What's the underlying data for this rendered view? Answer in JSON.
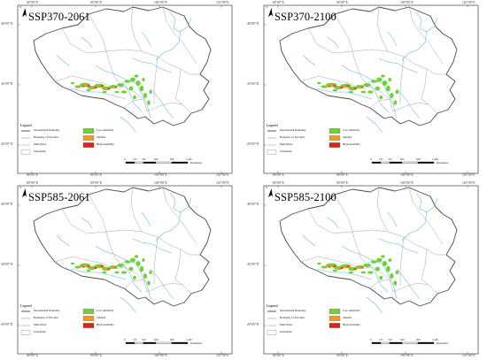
{
  "grid": {
    "lon": [
      "80°0'0\"E",
      "90°0'0\"E",
      "100°0'0\"E",
      "110°0'0\"E"
    ],
    "lat": [
      "40°0'0\"N",
      "30°0'0\"N",
      "20°0'0\"N"
    ]
  },
  "north": "N",
  "legend": {
    "title": "Legend",
    "items": [
      {
        "label": "International Boundary",
        "kind": "line",
        "color": "#555555"
      },
      {
        "label": "Boundary of Province",
        "kind": "line",
        "color": "#9a9a9a"
      },
      {
        "label": "Main River",
        "kind": "line",
        "color": "#5fb6e6"
      },
      {
        "label": "Unsuitable",
        "kind": "box",
        "color": "#ffffff"
      },
      {
        "label": "Low suitability",
        "kind": "box",
        "color": "#6fd13a"
      },
      {
        "label": "Suitable",
        "kind": "box",
        "color": "#f29a28"
      },
      {
        "label": "High suitability",
        "kind": "box",
        "color": "#d9241c"
      }
    ]
  },
  "scale": {
    "ticks": [
      "0",
      "155",
      "310",
      "620",
      "930",
      "1,240"
    ],
    "unit": "Kilometers"
  },
  "colors": {
    "low": "#6fd13a",
    "suitable": "#f29a28",
    "high": "#d9241c",
    "river": "#5fb6e6",
    "province": "#9a9a9a",
    "intl": "#4a4a4a"
  },
  "panels": [
    {
      "title": "SSP370-2061"
    },
    {
      "title": "SSP370-2100"
    },
    {
      "title": "SSP585-2061"
    },
    {
      "title": "SSP585-2100"
    }
  ]
}
